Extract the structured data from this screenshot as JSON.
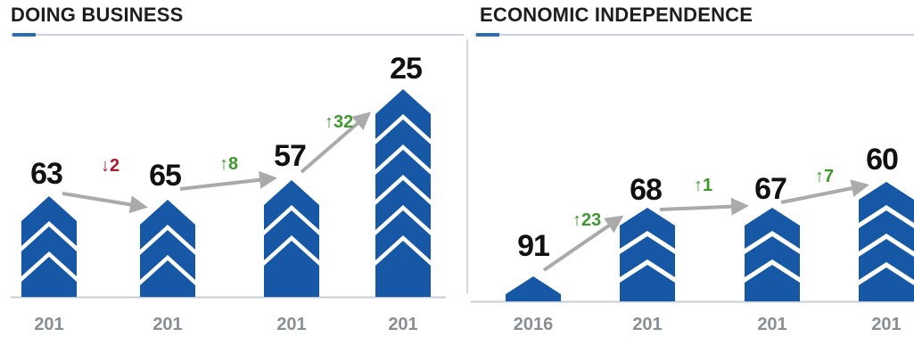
{
  "chart_data": [
    {
      "type": "bar",
      "title": "DOING BUSINESS",
      "categories": [
        "201",
        "201",
        "201",
        "201"
      ],
      "values": [
        63,
        65,
        57,
        25
      ],
      "changes": [
        {
          "text": "2",
          "direction": "down"
        },
        {
          "text": "8",
          "direction": "up"
        },
        {
          "text": "32",
          "direction": "up"
        }
      ],
      "grid": false,
      "colors": {
        "bar": "#1658a6",
        "up": "#3f9a2e",
        "down": "#b0162a",
        "arrow": "#aaaaaa"
      }
    },
    {
      "type": "bar",
      "title": "ECONOMIC INDEPENDENCE",
      "categories": [
        "2016",
        "201",
        "201",
        "201"
      ],
      "values": [
        91,
        68,
        67,
        60
      ],
      "changes": [
        {
          "text": "23",
          "direction": "up"
        },
        {
          "text": "1",
          "direction": "up"
        },
        {
          "text": "7",
          "direction": "up"
        }
      ],
      "grid": false,
      "colors": {
        "bar": "#1658a6",
        "up": "#3f9a2e",
        "down": "#b0162a",
        "arrow": "#aaaaaa"
      }
    }
  ]
}
